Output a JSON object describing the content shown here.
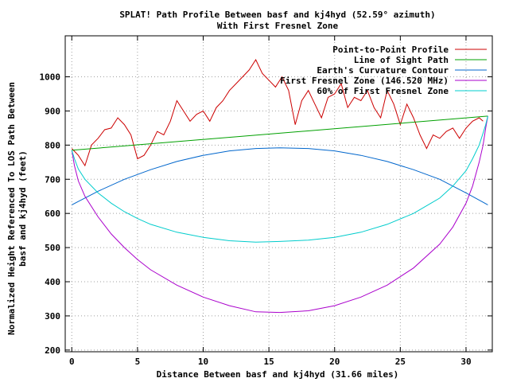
{
  "chart_data": {
    "type": "line",
    "title": "SPLAT! Path Profile Between basf and kj4hyd (52.59° azimuth)",
    "subtitle": "With First Fresnel Zone",
    "xlabel": "Distance Between basf and kj4hyd (31.66 miles)",
    "ylabel_line1": "Normalized Height Referenced To LOS Path Between",
    "ylabel_line2": "basf and kj4hyd (feet)",
    "xlim": [
      -0.5,
      32
    ],
    "ylim": [
      195,
      1120
    ],
    "x_ticks": [
      0,
      5,
      10,
      15,
      20,
      25,
      30
    ],
    "y_ticks": [
      200,
      300,
      400,
      500,
      600,
      700,
      800,
      900,
      1000
    ],
    "grid": true,
    "legend_position": "top-right",
    "path_length": 31.66,
    "series": [
      {
        "name": "Point-to-Point Profile",
        "color": "#cc0000",
        "x": [
          0,
          0.5,
          1,
          1.5,
          2,
          2.5,
          3,
          3.5,
          4,
          4.5,
          5,
          5.5,
          6,
          6.5,
          7,
          7.5,
          8,
          8.5,
          9,
          9.5,
          10,
          10.5,
          11,
          11.5,
          12,
          12.5,
          13,
          13.5,
          14,
          14.5,
          15,
          15.5,
          16,
          16.5,
          17,
          17.5,
          18,
          18.5,
          19,
          19.5,
          20,
          20.5,
          21,
          21.5,
          22,
          22.5,
          23,
          23.5,
          24,
          24.5,
          25,
          25.5,
          26,
          26.5,
          27,
          27.5,
          28,
          28.5,
          29,
          29.5,
          30,
          30.5,
          31,
          31.3
        ],
        "values": [
          790,
          770,
          740,
          800,
          820,
          845,
          850,
          880,
          860,
          830,
          760,
          770,
          800,
          840,
          830,
          870,
          930,
          900,
          870,
          890,
          900,
          870,
          910,
          930,
          960,
          980,
          1000,
          1020,
          1050,
          1010,
          990,
          970,
          1000,
          960,
          860,
          930,
          960,
          920,
          880,
          940,
          950,
          980,
          910,
          940,
          930,
          960,
          910,
          880,
          960,
          920,
          860,
          920,
          880,
          830,
          790,
          830,
          820,
          840,
          850,
          820,
          850,
          870,
          880,
          870
        ]
      },
      {
        "name": "Line of Sight Path",
        "color": "#00a000",
        "x": [
          0,
          31.66
        ],
        "values": [
          785,
          885
        ]
      },
      {
        "name": "Earth's Curvature Contour",
        "color": "#0066cc",
        "x": [
          0,
          2,
          4,
          6,
          8,
          10,
          12,
          14,
          15.83,
          18,
          20,
          22,
          24,
          26,
          28,
          30,
          31.66
        ],
        "values": [
          625,
          665,
          700,
          728,
          752,
          770,
          783,
          790,
          792,
          790,
          783,
          770,
          752,
          728,
          700,
          660,
          625
        ]
      },
      {
        "name": "First Fresnel Zone (146.520 MHz)",
        "color": "#aa00cc",
        "x": [
          0,
          0.2,
          0.5,
          1,
          2,
          3,
          4,
          5,
          6,
          8,
          10,
          12,
          14,
          15.83,
          18,
          20,
          22,
          24,
          26,
          28,
          29,
          30,
          30.5,
          31,
          31.3,
          31.5,
          31.66
        ],
        "values": [
          785,
          740,
          695,
          650,
          590,
          540,
          500,
          465,
          435,
          390,
          355,
          330,
          312,
          310,
          315,
          330,
          355,
          390,
          440,
          510,
          560,
          630,
          680,
          750,
          800,
          850,
          885
        ]
      },
      {
        "name": "60% of First Fresnel Zone",
        "color": "#00cccc",
        "x": [
          0,
          0.2,
          0.5,
          1,
          2,
          3,
          4,
          5,
          6,
          8,
          10,
          12,
          14,
          15.83,
          18,
          20,
          22,
          24,
          26,
          28,
          29,
          30,
          30.5,
          31,
          31.3,
          31.5,
          31.66
        ],
        "values": [
          785,
          760,
          730,
          700,
          660,
          630,
          605,
          585,
          568,
          545,
          530,
          520,
          516,
          518,
          522,
          530,
          545,
          568,
          600,
          645,
          680,
          725,
          760,
          800,
          835,
          860,
          885
        ]
      }
    ]
  }
}
